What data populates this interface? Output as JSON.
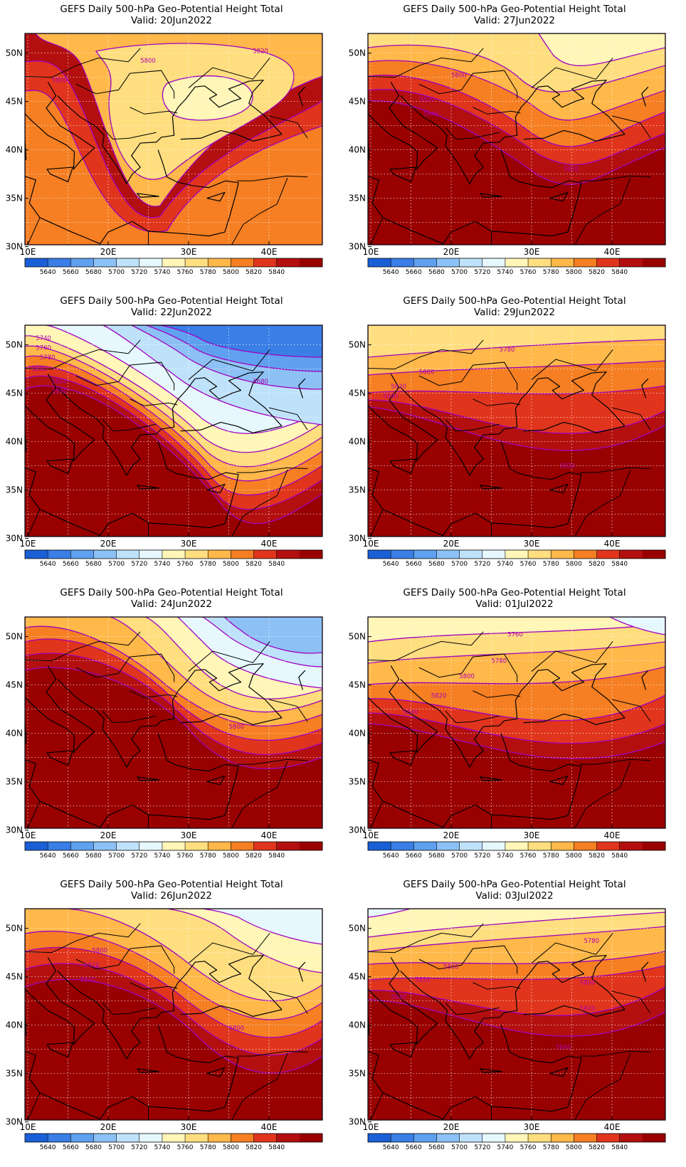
{
  "colorbar": {
    "levels": [
      "5640",
      "5660",
      "5680",
      "5700",
      "5720",
      "5740",
      "5760",
      "5780",
      "5800",
      "5820",
      "5840"
    ],
    "colors": [
      "#1a5fd6",
      "#3a7ee6",
      "#5fa0ef",
      "#8dc1f5",
      "#bfe2fb",
      "#e6f8fd",
      "#fff6b8",
      "#ffde80",
      "#ffb84a",
      "#f57f22",
      "#e0351c",
      "#b40f0f",
      "#990000"
    ]
  },
  "axes": {
    "lon_labels": [
      "10E",
      "20E",
      "30E",
      "40E"
    ],
    "lat_labels": [
      "50N",
      "45N",
      "40N",
      "35N",
      "30N"
    ]
  },
  "panels": [
    {
      "title": "GEFS Daily 500-hPa Geo-Potential Height Total",
      "valid": "Valid: 20Jun2022",
      "contour_labels": [
        "5800",
        "5800",
        "5820"
      ]
    },
    {
      "title": "GEFS Daily 500-hPa Geo-Potential Height Total",
      "valid": "Valid: 27Jun2022",
      "contour_labels": [
        "5800",
        "5820",
        "5840",
        "5820"
      ]
    },
    {
      "title": "GEFS Daily 500-hPa Geo-Potential Height Total",
      "valid": "Valid: 22Jun2022",
      "contour_labels": [
        "5740",
        "5760",
        "5780",
        "5800",
        "5820",
        "5840",
        "5680"
      ]
    },
    {
      "title": "GEFS Daily 500-hPa Geo-Potential Height Total",
      "valid": "Valid: 29Jun2022",
      "contour_labels": [
        "5780",
        "5800",
        "5820",
        "5840",
        "5820"
      ]
    },
    {
      "title": "GEFS Daily 500-hPa Geo-Potential Height Total",
      "valid": "Valid: 24Jun2022",
      "contour_labels": [
        "5800"
      ]
    },
    {
      "title": "GEFS Daily 500-hPa Geo-Potential Height Total",
      "valid": "Valid: 01Jul2022",
      "contour_labels": [
        "5760",
        "5780",
        "5800",
        "5820",
        "5840"
      ]
    },
    {
      "title": "GEFS Daily 500-hPa Geo-Potential Height Total",
      "valid": "Valid: 26Jun2022",
      "contour_labels": [
        "5800",
        "5820",
        "5840",
        "5800"
      ]
    },
    {
      "title": "GEFS Daily 500-hPa Geo-Potential Height Total",
      "valid": "Valid: 03Jul2022",
      "contour_labels": [
        "5780",
        "5800",
        "5820",
        "5800",
        "5840",
        "5820",
        "5840"
      ]
    }
  ]
}
